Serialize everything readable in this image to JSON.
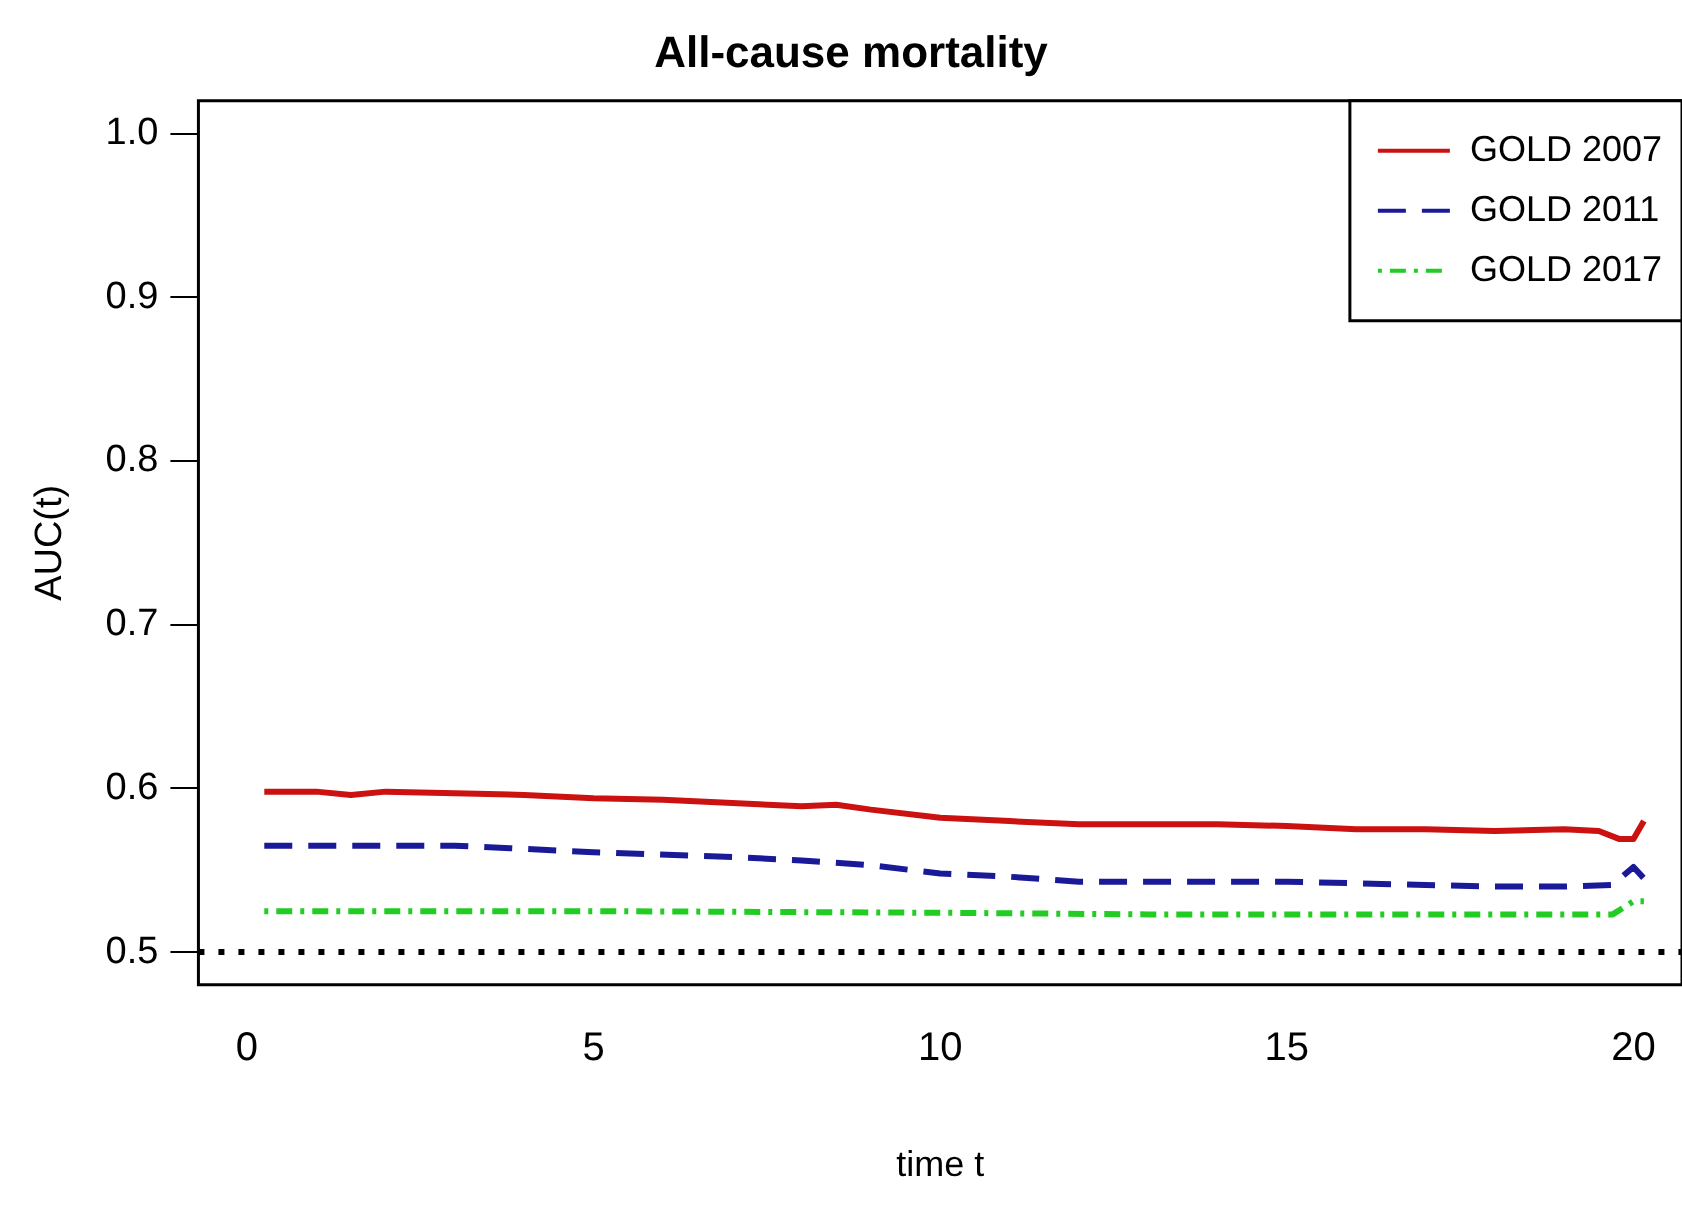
{
  "chart_data": {
    "type": "line",
    "title": "All-cause mortality",
    "xlabel": "time t",
    "ylabel": "AUC(t)",
    "xlim": [
      -0.7,
      20.7
    ],
    "xticks": [
      0,
      5,
      10,
      15,
      20
    ],
    "ylim": [
      0.48,
      1.02
    ],
    "yticks": [
      0.5,
      0.6,
      0.7,
      0.8,
      0.9,
      {
        "value": 1,
        "label": "1.0"
      }
    ],
    "grid": false,
    "legend": "top right",
    "marker": "none",
    "ref_lines": [
      {
        "axis": "y",
        "value": 0.5,
        "color": "#000000",
        "line_style": "dotted"
      }
    ],
    "series": [
      {
        "name": "GOLD 2007",
        "color": "#cc1111",
        "line_style": "solid",
        "x": [
          0.25,
          1,
          1.5,
          2,
          3,
          4,
          5,
          6,
          7,
          8,
          8.5,
          9,
          10,
          11,
          12,
          13,
          14,
          15,
          16,
          17,
          18,
          19,
          19.5,
          19.8,
          20,
          20.15
        ],
        "values": [
          0.598,
          0.598,
          0.596,
          0.598,
          0.597,
          0.596,
          0.594,
          0.593,
          0.591,
          0.589,
          0.59,
          0.587,
          0.582,
          0.58,
          0.578,
          0.578,
          0.578,
          0.577,
          0.575,
          0.575,
          0.574,
          0.575,
          0.574,
          0.569,
          0.569,
          0.58
        ]
      },
      {
        "name": "GOLD 2011",
        "color": "#1a1a99",
        "line_style": "dashed",
        "x": [
          0.25,
          3,
          4,
          5,
          7,
          8,
          9,
          10,
          11,
          12,
          13,
          15,
          17,
          18,
          19,
          19.7,
          20,
          20.15
        ],
        "values": [
          0.565,
          0.565,
          0.563,
          0.561,
          0.558,
          0.556,
          0.553,
          0.548,
          0.546,
          0.543,
          0.543,
          0.543,
          0.541,
          0.54,
          0.54,
          0.541,
          0.552,
          0.545
        ]
      },
      {
        "name": "GOLD 2017",
        "color": "#22cc22",
        "line_style": "dotted",
        "x": [
          0.25,
          5,
          10,
          13,
          15,
          17,
          19,
          19.7,
          20,
          20.15
        ],
        "values": [
          0.525,
          0.525,
          0.524,
          0.523,
          0.523,
          0.523,
          0.523,
          0.523,
          0.531,
          0.531
        ]
      }
    ]
  }
}
